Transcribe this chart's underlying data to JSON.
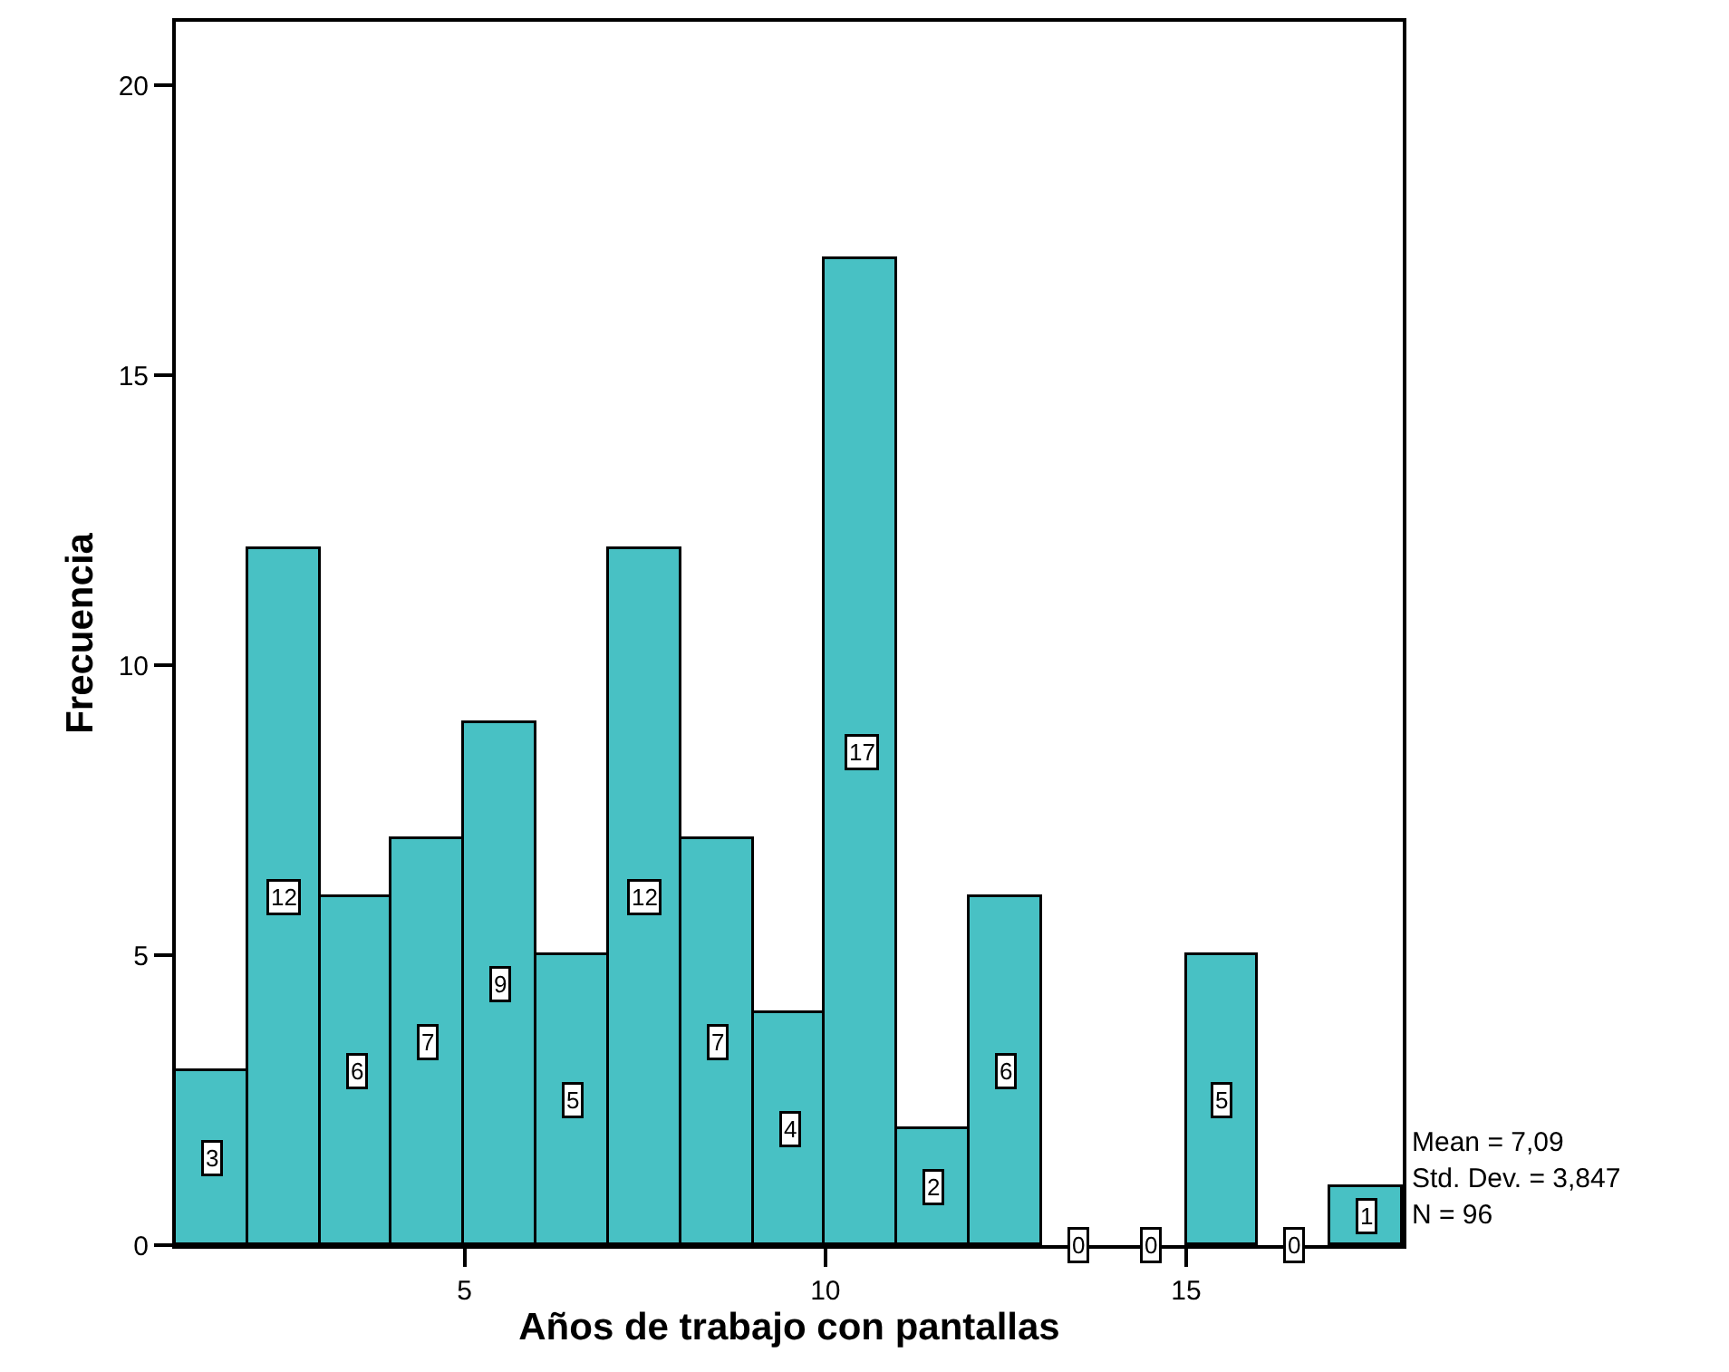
{
  "chart_data": {
    "type": "histogram",
    "xlabel": "Años de trabajo con pantallas",
    "ylabel": "Frecuencia",
    "bins": [
      1,
      2,
      3,
      4,
      5,
      6,
      7,
      8,
      9,
      10,
      11,
      12,
      13,
      14,
      15,
      16,
      17,
      18
    ],
    "values": [
      3,
      12,
      6,
      7,
      9,
      5,
      12,
      7,
      4,
      17,
      2,
      6,
      0,
      0,
      5,
      0,
      1
    ],
    "color": "#48c1c4",
    "xlim": [
      1,
      18
    ],
    "xticks": [
      5,
      10,
      15
    ],
    "ylim": [
      0,
      21.1
    ],
    "yticks": [
      0,
      5,
      10,
      15,
      20
    ],
    "data_labels": true,
    "annotations": [
      "Mean = 7,09",
      "Std. Dev. = 3,847",
      "N = 96"
    ]
  }
}
